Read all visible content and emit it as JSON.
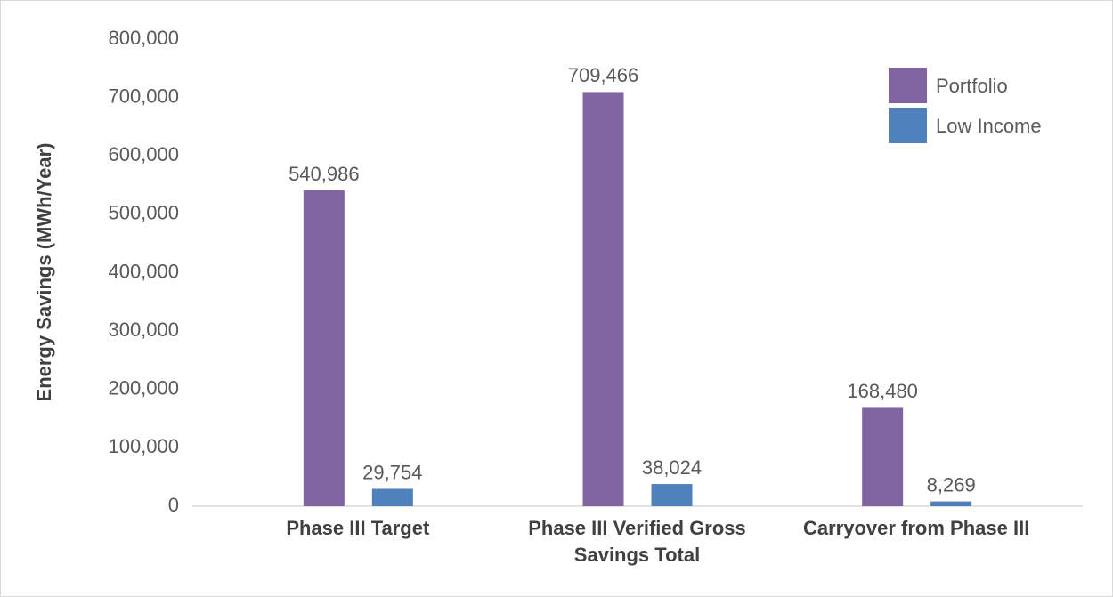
{
  "chart_data": {
    "type": "bar",
    "y_label": "Energy Savings (MWh/Year)",
    "categories": [
      "Phase III Target",
      "Phase III Verified Gross Savings Total",
      "Carryover from Phase III"
    ],
    "series": [
      {
        "name": "Portfolio",
        "color": "#8064a2",
        "values": [
          540986,
          709466,
          168480
        ],
        "value_labels": [
          "540,986",
          "709,466",
          "168,480"
        ]
      },
      {
        "name": "Low Income",
        "color": "#4f81bd",
        "values": [
          29754,
          38024,
          8269
        ],
        "value_labels": [
          "29,754",
          "38,024",
          "8,269"
        ]
      }
    ],
    "ylim": [
      0,
      800000
    ],
    "yticks": [
      0,
      {
        "value": 100000,
        "label": "100,000"
      },
      {
        "value": 200000,
        "label": "200,000"
      },
      {
        "value": 300000,
        "label": "300,000"
      },
      {
        "value": 400000,
        "label": "400,000"
      },
      {
        "value": 500000,
        "label": "500,000"
      },
      {
        "value": 600000,
        "label": "600,000"
      },
      {
        "value": 700000,
        "label": "700,000"
      },
      {
        "value": 800000,
        "label": "800,000"
      }
    ],
    "grid": false,
    "legend": "top-right"
  }
}
